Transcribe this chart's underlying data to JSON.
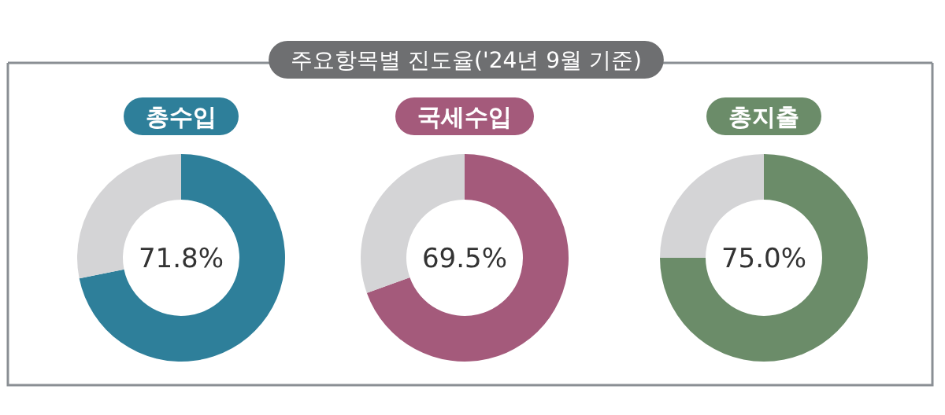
{
  "chart_data": [
    {
      "type": "other",
      "title": "주요항목별 진도율('24년 9월 기준)"
    },
    {
      "type": "donut",
      "title": "총수입",
      "categories": [
        null,
        null
      ],
      "values": [
        71.8,
        28.2
      ],
      "colors": [
        "#2e7f9a",
        "#d4d4d6"
      ],
      "value_labels": [
        "71.8%",
        null
      ]
    },
    {
      "type": "donut",
      "title": "국세수입",
      "categories": [
        null,
        null
      ],
      "values": [
        69.5,
        30.5
      ],
      "colors": [
        "#a45a7b",
        "#d4d4d6"
      ],
      "value_labels": [
        "69.5%",
        null
      ]
    },
    {
      "type": "donut",
      "title": "총지출",
      "categories": [
        null,
        null
      ],
      "values": [
        75.0,
        25.0
      ],
      "colors": [
        "#6b8c69",
        "#d4d4d6"
      ],
      "value_labels": [
        "75.0%",
        null
      ]
    }
  ]
}
